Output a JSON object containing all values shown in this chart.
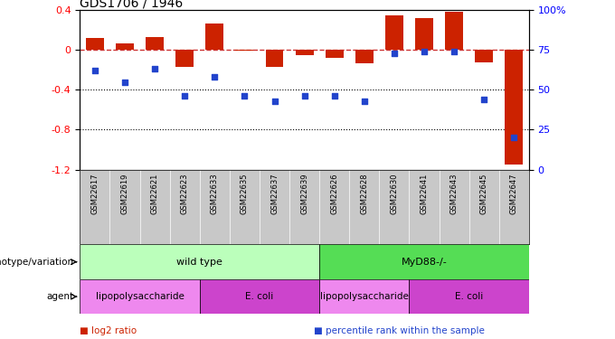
{
  "title": "GDS1706 / 1946",
  "samples": [
    "GSM22617",
    "GSM22619",
    "GSM22621",
    "GSM22623",
    "GSM22633",
    "GSM22635",
    "GSM22637",
    "GSM22639",
    "GSM22626",
    "GSM22628",
    "GSM22630",
    "GSM22641",
    "GSM22643",
    "GSM22645",
    "GSM22647"
  ],
  "log2_ratio": [
    0.12,
    0.07,
    0.13,
    -0.17,
    0.27,
    -0.01,
    -0.17,
    -0.05,
    -0.08,
    -0.13,
    0.35,
    0.32,
    0.38,
    -0.12,
    -1.15
  ],
  "percentile": [
    62,
    55,
    63,
    46,
    58,
    46,
    43,
    46,
    46,
    43,
    73,
    74,
    74,
    44,
    20
  ],
  "ylim_left": [
    -1.2,
    0.4
  ],
  "ylim_right": [
    0,
    100
  ],
  "yticks_left": [
    0.4,
    0.0,
    -0.4,
    -0.8,
    -1.2
  ],
  "yticks_right": [
    100,
    75,
    50,
    25,
    0
  ],
  "bar_color": "#CC2200",
  "dot_color": "#2244CC",
  "dashed_line_color": "#CC3333",
  "genotype_groups": [
    {
      "label": "wild type",
      "start": 0,
      "end": 8,
      "color": "#BBFFBB"
    },
    {
      "label": "MyD88-/-",
      "start": 8,
      "end": 15,
      "color": "#55DD55"
    }
  ],
  "agent_groups": [
    {
      "label": "lipopolysaccharide",
      "start": 0,
      "end": 4,
      "color": "#EE88EE"
    },
    {
      "label": "E. coli",
      "start": 4,
      "end": 8,
      "color": "#CC44CC"
    },
    {
      "label": "lipopolysaccharide",
      "start": 8,
      "end": 11,
      "color": "#EE88EE"
    },
    {
      "label": "E. coli",
      "start": 11,
      "end": 15,
      "color": "#CC44CC"
    }
  ],
  "legend_items": [
    {
      "label": "log2 ratio",
      "color": "#CC2200"
    },
    {
      "label": "percentile rank within the sample",
      "color": "#2244CC"
    }
  ],
  "background_color": "#FFFFFF",
  "plot_bg": "#FFFFFF",
  "sample_area_color": "#C8C8C8",
  "figsize": [
    6.8,
    3.75
  ],
  "dpi": 100
}
